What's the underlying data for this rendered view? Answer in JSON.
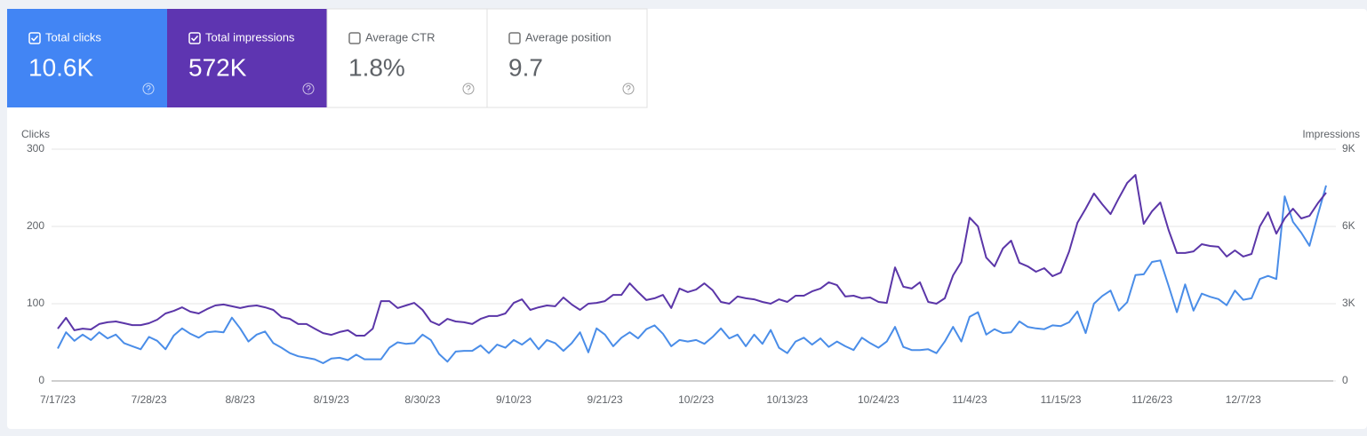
{
  "cards": [
    {
      "label": "Total clicks",
      "value": "10.6K",
      "checked": true,
      "color": "#4285f4"
    },
    {
      "label": "Total impressions",
      "value": "572K",
      "checked": true,
      "color": "#5e35b1"
    },
    {
      "label": "Average CTR",
      "value": "1.8%",
      "checked": false,
      "color": "#ffffff"
    },
    {
      "label": "Average position",
      "value": "9.7",
      "checked": false,
      "color": "#ffffff"
    }
  ],
  "chart_data": {
    "type": "line",
    "ylabel": "Clicks",
    "y2label": "Impressions",
    "categories": [
      "7/17/23",
      null,
      null,
      null,
      null,
      null,
      null,
      null,
      null,
      null,
      null,
      "7/28/23",
      null,
      null,
      null,
      null,
      null,
      null,
      null,
      null,
      null,
      null,
      "8/8/23",
      null,
      null,
      null,
      null,
      null,
      null,
      null,
      null,
      null,
      null,
      "8/19/23",
      null,
      null,
      null,
      null,
      null,
      null,
      null,
      null,
      null,
      null,
      "8/30/23",
      null,
      null,
      null,
      null,
      null,
      null,
      null,
      null,
      null,
      null,
      "9/10/23",
      null,
      null,
      null,
      null,
      null,
      null,
      null,
      null,
      null,
      null,
      "9/21/23",
      null,
      null,
      null,
      null,
      null,
      null,
      null,
      null,
      null,
      null,
      "10/2/23",
      null,
      null,
      null,
      null,
      null,
      null,
      null,
      null,
      null,
      null,
      "10/13/23",
      null,
      null,
      null,
      null,
      null,
      null,
      null,
      null,
      null,
      null,
      "10/24/23",
      null,
      null,
      null,
      null,
      null,
      null,
      null,
      null,
      null,
      null,
      "11/4/23",
      null,
      null,
      null,
      null,
      null,
      null,
      null,
      null,
      null,
      null,
      "11/15/23",
      null,
      null,
      null,
      null,
      null,
      null,
      null,
      null,
      null,
      null,
      "11/26/23",
      null,
      null,
      null,
      null,
      null,
      null,
      null,
      null,
      null,
      null,
      "12/7/23",
      null,
      null,
      null,
      null,
      null,
      null,
      null,
      null,
      null,
      null
    ],
    "series": [
      {
        "name": "Clicks",
        "color": "#4a8de8",
        "values": [
          42,
          63,
          52,
          60,
          53,
          63,
          55,
          60,
          49,
          45,
          41,
          57,
          52,
          41,
          59,
          68,
          61,
          56,
          63,
          64,
          63,
          82,
          68,
          51,
          60,
          64,
          49,
          43,
          36,
          32,
          30,
          28,
          23,
          29,
          30,
          27,
          34,
          28,
          28,
          28,
          43,
          50,
          48,
          49,
          60,
          53,
          35,
          25,
          38,
          39,
          39,
          46,
          36,
          47,
          43,
          53,
          47,
          55,
          41,
          53,
          49,
          39,
          49,
          63,
          37,
          68,
          60,
          45,
          56,
          63,
          55,
          67,
          72,
          61,
          45,
          53,
          51,
          53,
          48,
          57,
          68,
          55,
          60,
          45,
          60,
          48,
          66,
          43,
          36,
          51,
          56,
          47,
          55,
          44,
          51,
          45,
          40,
          56,
          49,
          43,
          51,
          70,
          44,
          40,
          40,
          41,
          36,
          51,
          70,
          51,
          83,
          89,
          60,
          67,
          62,
          63,
          77,
          70,
          68,
          67,
          72,
          71,
          76,
          90,
          62,
          100,
          110,
          117,
          91,
          102,
          137,
          138,
          154,
          156,
          123,
          89,
          125,
          91,
          113,
          109,
          106,
          98,
          117,
          105,
          107,
          132,
          136,
          132,
          239,
          206,
          192,
          175,
          215,
          253
        ]
      },
      {
        "name": "Impressions",
        "color": "#5b36a8",
        "axis": "y2",
        "values": [
          2030,
          2450,
          1970,
          2030,
          2000,
          2210,
          2280,
          2310,
          2240,
          2170,
          2170,
          2240,
          2380,
          2620,
          2720,
          2860,
          2690,
          2620,
          2790,
          2930,
          2970,
          2900,
          2830,
          2900,
          2930,
          2860,
          2760,
          2480,
          2410,
          2210,
          2210,
          2030,
          1860,
          1790,
          1900,
          1970,
          1760,
          1760,
          2030,
          3100,
          3100,
          2830,
          2930,
          3030,
          2760,
          2310,
          2170,
          2410,
          2310,
          2280,
          2210,
          2410,
          2520,
          2520,
          2620,
          3030,
          3170,
          2760,
          2860,
          2930,
          2900,
          3240,
          2970,
          2760,
          3000,
          3030,
          3100,
          3340,
          3340,
          3790,
          3450,
          3140,
          3210,
          3340,
          2830,
          3590,
          3450,
          3550,
          3790,
          3520,
          3070,
          3000,
          3280,
          3210,
          3170,
          3070,
          3000,
          3170,
          3070,
          3310,
          3310,
          3480,
          3590,
          3830,
          3720,
          3280,
          3310,
          3210,
          3240,
          3070,
          3030,
          4410,
          3660,
          3590,
          3830,
          3070,
          3000,
          3210,
          4100,
          4620,
          6340,
          6000,
          4790,
          4450,
          5140,
          5450,
          4590,
          4450,
          4240,
          4380,
          4070,
          4210,
          5030,
          6140,
          6690,
          7280,
          6860,
          6480,
          7100,
          7690,
          8000,
          6100,
          6590,
          6930,
          5860,
          4970,
          4970,
          5030,
          5310,
          5240,
          5210,
          4830,
          5070,
          4830,
          4930,
          6000,
          6550,
          5720,
          6310,
          6690,
          6310,
          6410,
          6900,
          7310
        ]
      }
    ],
    "ylim": [
      0,
      300
    ],
    "yticks": [
      0,
      100,
      200,
      300
    ],
    "y2lim": [
      0,
      9000
    ],
    "y2ticks": [
      0,
      {
        "value": 3000,
        "label": "3K"
      },
      {
        "value": 6000,
        "label": "6K"
      },
      {
        "value": 9000,
        "label": "9K"
      }
    ],
    "grid": true
  }
}
